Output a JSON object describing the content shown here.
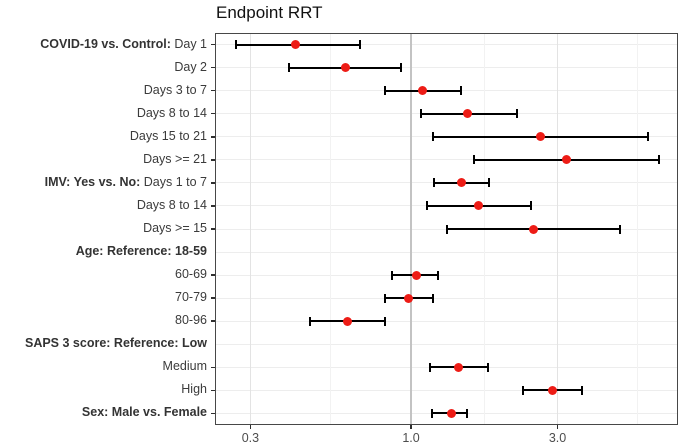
{
  "chart_data": {
    "type": "scatter",
    "subtype": "forest-plot",
    "title": "Endpoint RRT",
    "x_scale": "log10",
    "xlim": [
      0.23,
      7.4
    ],
    "grid": true,
    "legend": "none",
    "reference_line_x": 1.0,
    "point_color": "#ed1c16",
    "ci_color": "#000000",
    "x_ticks": [
      {
        "value": 0.3,
        "label": "0.3"
      },
      {
        "value": 1.0,
        "label": "1.0"
      },
      {
        "value": 3.0,
        "label": "3.0"
      }
    ],
    "x_minor_gridlines": [
      0.548,
      1.732,
      5.477
    ],
    "rows": [
      {
        "label_bold": "COVID-19 vs. Control:",
        "label": "Day 1",
        "estimate": 0.42,
        "ci_low": 0.27,
        "ci_high": 0.68
      },
      {
        "label_bold": "",
        "label": "Day 2",
        "estimate": 0.61,
        "ci_low": 0.4,
        "ci_high": 0.93
      },
      {
        "label_bold": "",
        "label": "Days 3 to 7",
        "estimate": 1.09,
        "ci_low": 0.82,
        "ci_high": 1.45
      },
      {
        "label_bold": "",
        "label": "Days 8 to 14",
        "estimate": 1.53,
        "ci_low": 1.08,
        "ci_high": 2.21
      },
      {
        "label_bold": "",
        "label": "Days 15 to 21",
        "estimate": 2.63,
        "ci_low": 1.18,
        "ci_high": 5.9
      },
      {
        "label_bold": "",
        "label": "Days >= 21",
        "estimate": 3.2,
        "ci_low": 1.6,
        "ci_high": 6.4
      },
      {
        "label_bold": "IMV: Yes vs. No:",
        "label": "Days 1 to 7",
        "estimate": 1.46,
        "ci_low": 1.19,
        "ci_high": 1.8
      },
      {
        "label_bold": "",
        "label": "Days 8 to 14",
        "estimate": 1.66,
        "ci_low": 1.13,
        "ci_high": 2.46
      },
      {
        "label_bold": "",
        "label": "Days >= 15",
        "estimate": 2.5,
        "ci_low": 1.31,
        "ci_high": 4.8
      },
      {
        "label_bold": "Age: Reference: 18-59",
        "label": "",
        "estimate": null,
        "ci_low": null,
        "ci_high": null
      },
      {
        "label_bold": "",
        "label": "60-69",
        "estimate": 1.04,
        "ci_low": 0.87,
        "ci_high": 1.22
      },
      {
        "label_bold": "",
        "label": "70-79",
        "estimate": 0.98,
        "ci_low": 0.82,
        "ci_high": 1.18
      },
      {
        "label_bold": "",
        "label": "80-96",
        "estimate": 0.62,
        "ci_low": 0.47,
        "ci_high": 0.82
      },
      {
        "label_bold": "SAPS 3 score: Reference: Low",
        "label": "",
        "estimate": null,
        "ci_low": null,
        "ci_high": null
      },
      {
        "label_bold": "",
        "label": "Medium",
        "estimate": 1.43,
        "ci_low": 1.15,
        "ci_high": 1.78
      },
      {
        "label_bold": "",
        "label": "High",
        "estimate": 2.88,
        "ci_low": 2.32,
        "ci_high": 3.61
      },
      {
        "label_bold": "Sex: Male vs. Female",
        "label": "",
        "estimate": 1.35,
        "ci_low": 1.17,
        "ci_high": 1.52
      }
    ]
  }
}
